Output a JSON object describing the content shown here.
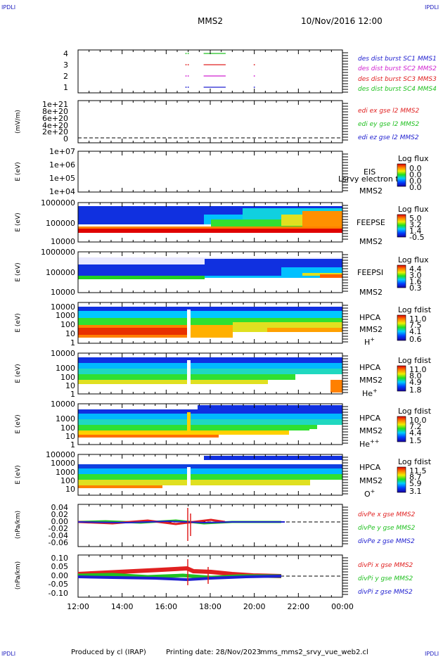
{
  "header": {
    "corner_left": "IPDLI",
    "corner_right": "IPDLI",
    "mission": "MMS2",
    "datetime": "10/Nov/2016 12:00"
  },
  "footer": {
    "produced_by": "Produced by cl (IRAP)",
    "printing_date": "Printing date: 28/Nov/2023",
    "filename": "mms_mms2_srvy_vue_web2.cl",
    "corner_left": "IPDLI",
    "corner_right": "IPDLI"
  },
  "colors": {
    "mms1": "#2020d0",
    "mms2": "#d020d0",
    "mms3": "#e02020",
    "mms4": "#20c020",
    "x_component": "#e02020",
    "y_component": "#20c020",
    "z_component": "#2020d0"
  },
  "chart_data": {
    "type": "multi-panel time series",
    "x_axis": {
      "ticks": [
        "12:00",
        "14:00",
        "16:00",
        "18:00",
        "20:00",
        "22:00",
        "00:00"
      ],
      "range_hours": [
        12,
        24
      ]
    },
    "panels": [
      {
        "id": "burst",
        "type": "scatter",
        "yticks": [
          "4",
          "3",
          "2",
          "1"
        ],
        "legend": [
          "des dist burst SC1 MMS1",
          "des dist burst SC2 MMS2",
          "des dist burst SC3 MMS3",
          "des dist burst SC4 MMS4"
        ],
        "series": [
          {
            "sc": 4,
            "points": [
              16.9,
              17.0
            ],
            "bar": [
              17.7,
              18.7
            ],
            "color": "#20c020"
          },
          {
            "sc": 3,
            "points": [
              16.9,
              17.0,
              20.0
            ],
            "bar": [
              17.7,
              18.7
            ],
            "color": "#e02020"
          },
          {
            "sc": 2,
            "points": [
              16.9,
              17.0,
              20.0
            ],
            "bar": [
              17.7,
              18.7
            ],
            "color": "#d020d0"
          },
          {
            "sc": 1,
            "points": [
              16.9,
              17.0,
              20.0
            ],
            "bar": [
              17.7,
              18.7
            ],
            "color": "#2020d0"
          }
        ]
      },
      {
        "id": "edi",
        "type": "line",
        "ylabel": "(mV/m)",
        "yticks": [
          "1e+21",
          "8e+20",
          "6e+20",
          "4e+20",
          "2e+20",
          "0"
        ],
        "legend": [
          "edi ex gse l2 MMS2",
          "edi ey gse l2 MMS2",
          "edi ez gse l2 MMS2"
        ]
      },
      {
        "id": "eis",
        "type": "heatmap",
        "ylabel": "E (eV)",
        "yticks": [
          "1e+07",
          "1e+06",
          "1e+05",
          "1e+04"
        ],
        "instrument": "EIS",
        "overlay_text": "Lsrvy electron to",
        "spacecraft": "MMS2",
        "colorbar_title": "Log flux",
        "colorbar_ticks": [
          "0.0",
          "0.0",
          "0.0",
          "0.0"
        ]
      },
      {
        "id": "feepse",
        "type": "heatmap",
        "ylabel": "E (eV)",
        "yticks": [
          "1000000",
          "100000",
          "10000"
        ],
        "instrument": "FEEPSE",
        "spacecraft": "MMS2",
        "colorbar_title": "Log flux",
        "colorbar_ticks": [
          "5.0",
          "3.2",
          "1.4",
          "-0.5"
        ]
      },
      {
        "id": "feepsi",
        "type": "heatmap",
        "ylabel": "E (eV)",
        "yticks": [
          "1000000",
          "100000",
          "10000"
        ],
        "instrument": "FEEPSI",
        "spacecraft": "MMS2",
        "colorbar_title": "Log flux",
        "colorbar_ticks": [
          "4.4",
          "3.0",
          "1.6",
          "0.3"
        ]
      },
      {
        "id": "hpca_h",
        "type": "heatmap",
        "ylabel": "E (eV)",
        "yticks": [
          "10000",
          "1000",
          "100",
          "10",
          "1"
        ],
        "instrument": "HPCA",
        "spacecraft": "MMS2",
        "species": "H",
        "charge": "+",
        "colorbar_title": "Log fdist",
        "colorbar_ticks": [
          "11.0",
          "7.5",
          "4.1",
          "0.6"
        ]
      },
      {
        "id": "hpca_he1",
        "type": "heatmap",
        "ylabel": "E (eV)",
        "yticks": [
          "10000",
          "1000",
          "100",
          "10",
          "1"
        ],
        "instrument": "HPCA",
        "spacecraft": "MMS2",
        "species": "He",
        "charge": "+",
        "colorbar_title": "Log fdist",
        "colorbar_ticks": [
          "11.0",
          "8.0",
          "4.9",
          "1.8"
        ]
      },
      {
        "id": "hpca_he2",
        "type": "heatmap",
        "ylabel": "E (eV)",
        "yticks": [
          "10000",
          "1000",
          "100",
          "10",
          "1"
        ],
        "instrument": "HPCA",
        "spacecraft": "MMS2",
        "species": "He",
        "charge": "++",
        "colorbar_title": "Log fdist",
        "colorbar_ticks": [
          "10.0",
          "7.2",
          "4.4",
          "1.5"
        ]
      },
      {
        "id": "hpca_o",
        "type": "heatmap",
        "ylabel": "E (eV)",
        "yticks": [
          "100000",
          "10000",
          "1000",
          "100",
          "10"
        ],
        "instrument": "HPCA",
        "spacecraft": "MMS2",
        "species": "O",
        "charge": "+",
        "colorbar_title": "Log fdist",
        "colorbar_ticks": [
          "11.5",
          "8.7",
          "5.9",
          "3.1"
        ]
      },
      {
        "id": "divpe",
        "type": "line",
        "ylabel": "(nPa/km)",
        "yticks": [
          "0.04",
          "0.02",
          "0.00",
          "-0.02",
          "-0.04",
          "-0.06"
        ],
        "legend": [
          "divPe x gse MMS2",
          "divPe y gse MMS2",
          "divPe z gse MMS2"
        ]
      },
      {
        "id": "divpi",
        "type": "line",
        "ylabel": "(nPa/km)",
        "yticks": [
          "0.10",
          "0.05",
          "0.00",
          "-0.05",
          "-0.10"
        ],
        "legend": [
          "divPi x gse MMS2",
          "divPi y gse MMS2",
          "divPi z gse MMS2"
        ]
      }
    ]
  }
}
